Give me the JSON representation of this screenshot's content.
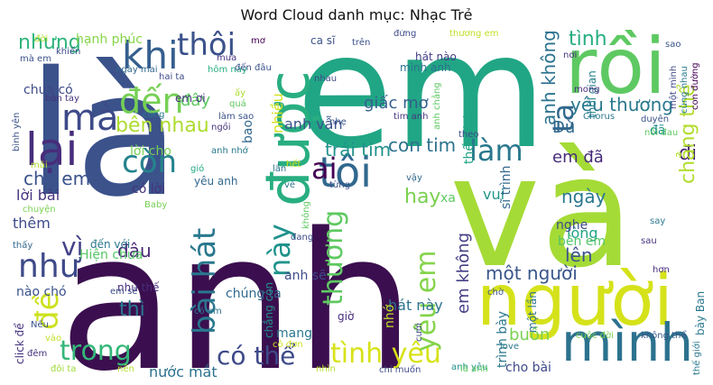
{
  "chart_data": {
    "type": "wordcloud",
    "title": "Word Cloud danh mục: Nhạc Trẻ",
    "words": [
      {
        "text": "anh",
        "color": "#3b0f4f"
      },
      {
        "text": "là",
        "color": "#3b528b"
      },
      {
        "text": "em",
        "color": "#21a685"
      },
      {
        "text": "và",
        "color": "#a5db36"
      },
      {
        "text": "người",
        "color": "#d5e21a"
      },
      {
        "text": "rồi",
        "color": "#5ec962"
      },
      {
        "text": "mình",
        "color": "#2c728e"
      },
      {
        "text": "được",
        "color": "#28ae80"
      },
      {
        "text": "lại",
        "color": "#472d7b"
      },
      {
        "text": "tôi",
        "color": "#31688e"
      },
      {
        "text": "khi",
        "color": "#355f8d"
      },
      {
        "text": "mà",
        "color": "#3e4a89"
      },
      {
        "text": "đến",
        "color": "#75d054"
      },
      {
        "text": "thôi",
        "color": "#3b528b"
      },
      {
        "text": "còn",
        "color": "#25838e"
      },
      {
        "text": "ai",
        "color": "#440154"
      },
      {
        "text": "trong",
        "color": "#35b779"
      },
      {
        "text": "có thể",
        "color": "#3e4a89"
      },
      {
        "text": "tình yêu",
        "color": "#d8e219"
      },
      {
        "text": "bài hát",
        "color": "#2a788e"
      },
      {
        "text": "này",
        "color": "#20928c"
      },
      {
        "text": "thương",
        "color": "#5ec962"
      },
      {
        "text": "yêu em",
        "color": "#84d44b"
      },
      {
        "text": "làm",
        "color": "#2a788e"
      },
      {
        "text": "ta",
        "color": "#31688e"
      },
      {
        "text": "như",
        "color": "#3e4a89"
      },
      {
        "text": "đề",
        "color": "#cde11d"
      },
      {
        "text": "vì",
        "color": "#424086"
      },
      {
        "text": "nhưng",
        "color": "#2fb47c"
      },
      {
        "text": "bên nhau",
        "color": "#addc30"
      },
      {
        "text": "cho em",
        "color": "#3b528b"
      },
      {
        "text": "con tim",
        "color": "#2c728e"
      },
      {
        "text": "trái tim",
        "color": "#21918c"
      },
      {
        "text": "giấc mơ",
        "color": "#355f8d"
      },
      {
        "text": "yêu thương",
        "color": "#2a788e"
      },
      {
        "text": "anh không",
        "color": "#2c728e"
      },
      {
        "text": "tình",
        "color": "#27ad81"
      },
      {
        "text": "hay",
        "color": "#7ad151"
      },
      {
        "text": "đi",
        "color": "#482475"
      },
      {
        "text": "chẳng thể",
        "color": "#b2dd2d"
      },
      {
        "text": "em đã",
        "color": "#472c7a"
      },
      {
        "text": "Dù",
        "color": "#31688e"
      },
      {
        "text": "ngày",
        "color": "#2a788e"
      },
      {
        "text": "một người",
        "color": "#39558c"
      },
      {
        "text": "lên",
        "color": "#3b528b"
      },
      {
        "text": "em không",
        "color": "#433e85"
      },
      {
        "text": "đâu",
        "color": "#482878"
      },
      {
        "text": "thì",
        "color": "#2a788e"
      },
      {
        "text": "buồn",
        "color": "#7ad151"
      },
      {
        "text": "nước mắt",
        "color": "#2c728e"
      },
      {
        "text": "thêm",
        "color": "#3e4a89"
      },
      {
        "text": "lời bài",
        "color": "#46337e"
      },
      {
        "text": "đây",
        "color": "#5ec962"
      },
      {
        "text": "anh vẫn",
        "color": "#3b528b"
      },
      {
        "text": "nhiều",
        "color": "#d2e21b"
      },
      {
        "text": "bao",
        "color": "#31688e"
      },
      {
        "text": "lòng",
        "color": "#20a486"
      },
      {
        "text": "bên em",
        "color": "#52c569"
      },
      {
        "text": "chúng ta",
        "color": "#31688e"
      },
      {
        "text": "hát này",
        "color": "#2c728e"
      },
      {
        "text": "vui",
        "color": "#1f988b"
      },
      {
        "text": "nghe",
        "color": "#3e4a89"
      },
      {
        "text": "mang",
        "color": "#2a788e"
      },
      {
        "text": "Hiện chưa",
        "color": "#56c667"
      },
      {
        "text": "hạnh phúc",
        "color": "#86d549"
      },
      {
        "text": "sĩ trình",
        "color": "#31688e"
      },
      {
        "text": "thế click",
        "color": "#20a386"
      },
      {
        "text": "cho bài",
        "color": "#3e4a89"
      },
      {
        "text": "đã",
        "color": "#21918c"
      },
      {
        "text": "nhớ",
        "color": "#c0df25"
      },
      {
        "text": "trình bày",
        "color": "#2a788e"
      },
      {
        "text": "mình anh",
        "color": "#2c728e"
      },
      {
        "text": "chẳng còn",
        "color": "#21918c"
      },
      {
        "text": "anh sẽ",
        "color": "#3e4a89"
      },
      {
        "text": "lời cho",
        "color": "#75d054"
      },
      {
        "text": "có lời",
        "color": "#46337e"
      },
      {
        "text": "yêu anh",
        "color": "#31688e"
      },
      {
        "text": "nào chó",
        "color": "#3b528b"
      },
      {
        "text": "như thế",
        "color": "#472d7b"
      },
      {
        "text": "click để",
        "color": "#46337e"
      },
      {
        "text": "đến với",
        "color": "#2a788e"
      },
      {
        "text": "em ơi",
        "color": "#46337e"
      },
      {
        "text": "một lần",
        "color": "#2c728e"
      },
      {
        "text": "thời gian",
        "color": "#26828e"
      },
      {
        "text": "bày Ban",
        "color": "#2a788e"
      },
      {
        "text": "ca sĩ",
        "color": "#3b528b"
      },
      {
        "text": "hát nào",
        "color": "#433e85"
      },
      {
        "text": "chưa có",
        "color": "#3e4a89"
      },
      {
        "text": "hôm nay",
        "color": "#27ad81"
      },
      {
        "text": "cùng",
        "color": "#2a788e"
      },
      {
        "text": "đời",
        "color": "#addc30"
      },
      {
        "text": "gió",
        "color": "#22a884"
      },
      {
        "text": "xa",
        "color": "#5ec962"
      },
      {
        "text": "mơ",
        "color": "#440154"
      },
      {
        "text": "nơi",
        "color": "#46337e"
      },
      {
        "text": "sao",
        "color": "#39568c"
      },
      {
        "text": "hai ta",
        "color": "#3e4a89"
      },
      {
        "text": "đến đâu",
        "color": "#3b528b"
      },
      {
        "text": "ngày mai",
        "color": "#31688e"
      },
      {
        "text": "có em",
        "color": "#2c728e"
      },
      {
        "text": "anh yêu",
        "color": "#21918c"
      },
      {
        "text": "chỉ muốn",
        "color": "#3e4a89"
      },
      {
        "text": "love",
        "color": "#2a788e"
      },
      {
        "text": "chờ",
        "color": "#3b528b"
      },
      {
        "text": "cuộc đời",
        "color": "#7ad151"
      },
      {
        "text": "đêm",
        "color": "#46337e"
      },
      {
        "text": "đôi ta",
        "color": "#a0da39"
      },
      {
        "text": "nên",
        "color": "#b5de2b"
      },
      {
        "text": "nhìn",
        "color": "#b5de2b"
      },
      {
        "text": "là anh",
        "color": "#5ec962"
      },
      {
        "text": "đang",
        "color": "#3e4a89"
      },
      {
        "text": "say",
        "color": "#2a788e"
      },
      {
        "text": "sau",
        "color": "#46337e"
      },
      {
        "text": "hơn",
        "color": "#472d7b"
      },
      {
        "text": "Baby",
        "color": "#75d054"
      },
      {
        "text": "Chorus",
        "color": "#2a788e"
      },
      {
        "text": "duyên",
        "color": "#3b528b"
      },
      {
        "text": "nỗi đau",
        "color": "#5ec962"
      },
      {
        "text": "cô đơn",
        "color": "#cde11d"
      },
      {
        "text": "thế giới",
        "color": "#2a788e"
      },
      {
        "text": "tim anh",
        "color": "#46337e"
      },
      {
        "text": "không thể",
        "color": "#39568c"
      },
      {
        "text": "bình yên",
        "color": "#3b528b"
      },
      {
        "text": "con đường",
        "color": "#440154"
      },
      {
        "text": "một mình",
        "color": "#3e4a89"
      },
      {
        "text": "mong",
        "color": "#472d7b"
      },
      {
        "text": "theo",
        "color": "#3e4a89"
      },
      {
        "text": "vậy",
        "color": "#31688e"
      },
      {
        "text": "mãi",
        "color": "#addc30"
      },
      {
        "text": "Nếu",
        "color": "#3b528b"
      },
      {
        "text": "quá",
        "color": "#5ec962"
      },
      {
        "text": "nhau",
        "color": "#3e4a89"
      },
      {
        "text": "không",
        "color": "#5ec962"
      },
      {
        "text": "ngồi",
        "color": "#46337e"
      },
      {
        "text": "anh nhớ",
        "color": "#2a788e"
      },
      {
        "text": "từng",
        "color": "#3b528b"
      },
      {
        "text": "vào",
        "color": "#c0df25"
      },
      {
        "text": "khiến",
        "color": "#3e4a89"
      },
      {
        "text": "thấy",
        "color": "#31688e"
      },
      {
        "text": "chuyện",
        "color": "#7ad151"
      },
      {
        "text": "lần",
        "color": "#2c728e"
      },
      {
        "text": "giờ",
        "color": "#472d7b"
      },
      {
        "text": "mưa",
        "color": "#46337e"
      },
      {
        "text": "trên",
        "color": "#3b528b"
      },
      {
        "text": "cùng nhau",
        "color": "#2a788e"
      },
      {
        "text": "anh chẳng",
        "color": "#5ec962"
      },
      {
        "text": "cười",
        "color": "#3e4a89"
      },
      {
        "text": "ấy",
        "color": "#addc30"
      },
      {
        "text": "mà em",
        "color": "#3b528b"
      },
      {
        "text": "thương em",
        "color": "#c0df25"
      },
      {
        "text": "bàn tay",
        "color": "#46337e"
      },
      {
        "text": "đừng",
        "color": "#3e4a89"
      },
      {
        "text": "về",
        "color": "#2a788e"
      },
      {
        "text": "làm sao",
        "color": "#3b528b"
      },
      {
        "text": "hết",
        "color": "#cde11d"
      },
      {
        "text": "em sẽ",
        "color": "#3e4a89"
      },
      {
        "text": "nhẹ",
        "color": "#3b528b"
      }
    ]
  }
}
